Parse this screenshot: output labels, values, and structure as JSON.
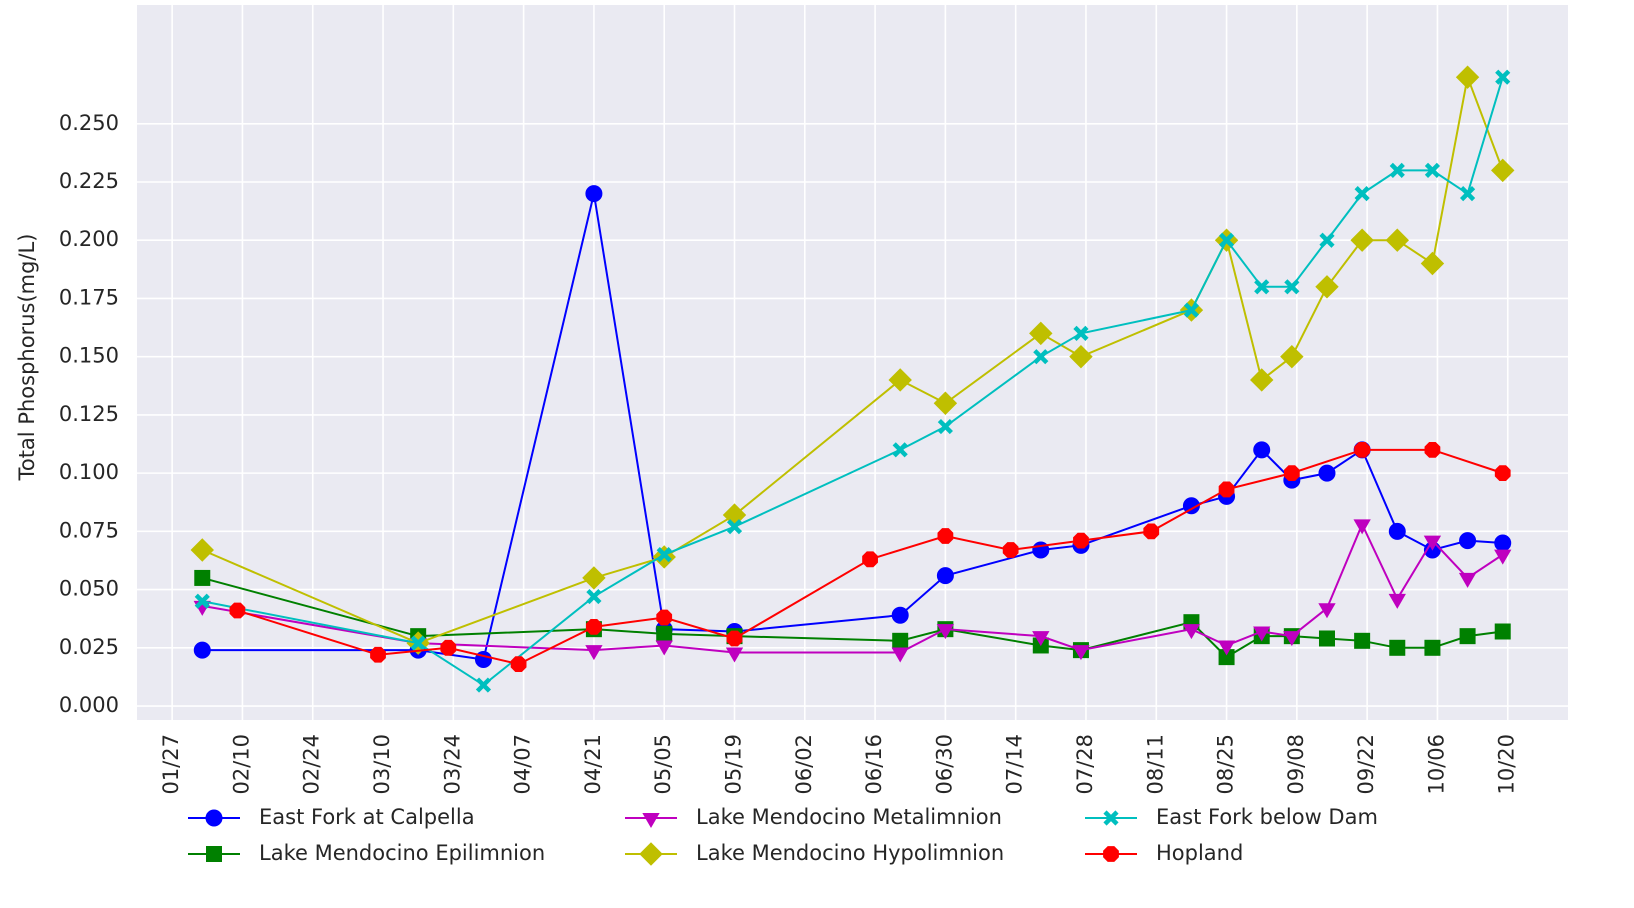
{
  "chart_data": {
    "type": "line",
    "y_label": "Total Phosphorus(mg/L)",
    "xlim": [
      "01/20",
      "11/01"
    ],
    "xticks": [
      "01/27",
      "02/10",
      "02/24",
      "03/10",
      "03/24",
      "04/07",
      "04/21",
      "05/05",
      "05/19",
      "06/02",
      "06/16",
      "06/30",
      "07/14",
      "07/28",
      "08/11",
      "08/25",
      "09/08",
      "09/22",
      "10/06",
      "10/20"
    ],
    "ylim": [
      -0.006,
      0.301
    ],
    "yticks": [
      {
        "value": 0,
        "label": "0.000"
      },
      {
        "value": 0.025,
        "label": "0.025"
      },
      {
        "value": 0.05,
        "label": "0.050"
      },
      {
        "value": 0.075,
        "label": "0.075"
      },
      {
        "value": 0.1,
        "label": "0.100"
      },
      {
        "value": 0.125,
        "label": "0.125"
      },
      {
        "value": 0.15,
        "label": "0.150"
      },
      {
        "value": 0.175,
        "label": "0.175"
      },
      {
        "value": 0.2,
        "label": "0.200"
      },
      {
        "value": 0.225,
        "label": "0.225"
      },
      {
        "value": 0.25,
        "label": "0.250"
      }
    ],
    "grid": true,
    "background": "#eaeaf2",
    "legend": "bottom",
    "series": [
      {
        "name": "East Fork at Calpella",
        "color": "#0000ff",
        "marker": "circle",
        "x": [
          "02/02",
          "03/17",
          "03/30",
          "04/21",
          "05/05",
          "05/19",
          "06/21",
          "06/30",
          "07/19",
          "07/27",
          "08/18",
          "08/25",
          "09/01",
          "09/07",
          "09/14",
          "09/21",
          "09/28",
          "10/05",
          "10/12",
          "10/19"
        ],
        "values": [
          0.024,
          0.024,
          0.02,
          0.22,
          0.033,
          0.032,
          0.039,
          0.056,
          0.067,
          0.069,
          0.086,
          0.09,
          0.11,
          0.097,
          0.1,
          0.11,
          0.075,
          0.067,
          0.071,
          0.07
        ]
      },
      {
        "name": "Lake Mendocino Epilimnion",
        "color": "#008000",
        "marker": "square",
        "x": [
          "02/02",
          "03/17",
          "04/21",
          "05/05",
          "05/19",
          "06/21",
          "06/30",
          "07/19",
          "07/27",
          "08/18",
          "08/25",
          "09/01",
          "09/07",
          "09/14",
          "09/21",
          "09/28",
          "10/05",
          "10/12",
          "10/19"
        ],
        "values": [
          0.055,
          0.03,
          0.033,
          0.031,
          0.03,
          0.028,
          0.033,
          0.026,
          0.024,
          0.036,
          0.021,
          0.03,
          0.03,
          0.029,
          0.028,
          0.025,
          0.025,
          0.03,
          0.032
        ]
      },
      {
        "name": "Lake Mendocino Metalimnion",
        "color": "#bf00bf",
        "marker": "triangle_down",
        "x": [
          "02/02",
          "03/17",
          "04/21",
          "05/05",
          "05/19",
          "06/21",
          "06/30",
          "07/19",
          "07/27",
          "08/18",
          "08/25",
          "09/01",
          "09/07",
          "09/14",
          "09/21",
          "09/28",
          "10/05",
          "10/12",
          "10/19"
        ],
        "values": [
          0.043,
          0.027,
          0.024,
          0.026,
          0.023,
          0.023,
          0.033,
          0.03,
          0.024,
          0.033,
          0.026,
          0.032,
          0.03,
          0.042,
          0.078,
          0.046,
          0.071,
          0.055,
          0.065
        ]
      },
      {
        "name": "Lake Mendocino Hypolimnion",
        "color": "#bfbf00",
        "marker": "diamond",
        "x": [
          "02/02",
          "03/17",
          "04/21",
          "05/05",
          "05/19",
          "06/21",
          "06/30",
          "07/19",
          "07/27",
          "08/18",
          "08/25",
          "09/01",
          "09/07",
          "09/14",
          "09/21",
          "09/28",
          "10/05",
          "10/12",
          "10/19"
        ],
        "values": [
          0.067,
          0.027,
          0.055,
          0.064,
          0.082,
          0.14,
          0.13,
          0.16,
          0.15,
          0.17,
          0.2,
          0.14,
          0.15,
          0.18,
          0.2,
          0.2,
          0.19,
          0.27,
          0.23
        ]
      },
      {
        "name": "East Fork below Dam",
        "color": "#00bfbf",
        "marker": "x",
        "x": [
          "02/02",
          "03/17",
          "03/30",
          "04/21",
          "05/05",
          "05/19",
          "06/21",
          "06/30",
          "07/19",
          "07/27",
          "08/18",
          "08/25",
          "09/01",
          "09/07",
          "09/14",
          "09/21",
          "09/28",
          "10/05",
          "10/12",
          "10/19"
        ],
        "values": [
          0.045,
          0.027,
          0.009,
          0.047,
          0.065,
          0.077,
          0.11,
          0.12,
          0.15,
          0.16,
          0.17,
          0.2,
          0.18,
          0.18,
          0.2,
          0.22,
          0.23,
          0.23,
          0.22,
          0.27
        ]
      },
      {
        "name": "Hopland",
        "color": "#ff0000",
        "marker": "octagon",
        "x": [
          "02/09",
          "03/09",
          "03/23",
          "04/06",
          "04/21",
          "05/05",
          "05/19",
          "06/15",
          "06/30",
          "07/13",
          "07/27",
          "08/10",
          "08/25",
          "09/07",
          "09/21",
          "10/05",
          "10/19"
        ],
        "values": [
          0.041,
          0.022,
          0.025,
          0.018,
          0.034,
          0.038,
          0.029,
          0.063,
          0.073,
          0.067,
          0.071,
          0.075,
          0.093,
          0.1,
          0.11,
          0.11,
          0.1
        ]
      }
    ]
  }
}
